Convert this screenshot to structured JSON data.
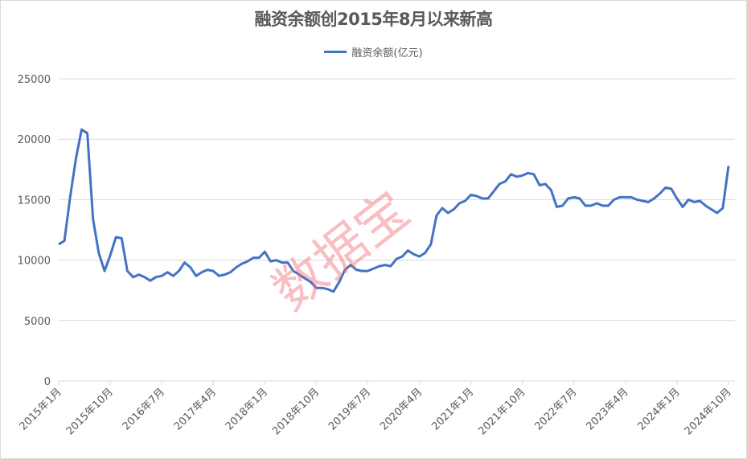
{
  "title": "融资余额创2015年8月以来新高",
  "legend": {
    "label": "融资余额(亿元)",
    "color": "#4472c4"
  },
  "watermark": "数据宝",
  "y_axis": {
    "ticks": [
      "0",
      "5000",
      "10000",
      "15000",
      "20000",
      "25000"
    ]
  },
  "x_axis": {
    "ticks": [
      "2015年1月",
      "2015年10月",
      "2016年7月",
      "2017年4月",
      "2018年1月",
      "2018年10月",
      "2019年7月",
      "2020年4月",
      "2021年1月",
      "2021年10月",
      "2022年7月",
      "2023年4月",
      "2024年1月",
      "2024年10月"
    ]
  },
  "chart_data": {
    "type": "line",
    "title": "融资余额创2015年8月以来新高",
    "xlabel": "",
    "ylabel": "",
    "ylim": [
      0,
      25000
    ],
    "grid": true,
    "legend_position": "top",
    "x_start": "2015-01",
    "x_end": "2024-10",
    "x_frequency": "monthly",
    "x_tick_labels": [
      "2015年1月",
      "2015年10月",
      "2016年7月",
      "2017年4月",
      "2018年1月",
      "2018年10月",
      "2019年7月",
      "2020年4月",
      "2021年1月",
      "2021年10月",
      "2022年7月",
      "2023年4月",
      "2024年1月",
      "2024年10月"
    ],
    "series": [
      {
        "name": "融资余额(亿元)",
        "color": "#4472c4",
        "values": [
          11300,
          11600,
          15200,
          18400,
          20800,
          20500,
          13400,
          10600,
          9100,
          10400,
          11900,
          11800,
          9100,
          8600,
          8800,
          8600,
          8300,
          8600,
          8700,
          9000,
          8700,
          9100,
          9800,
          9400,
          8700,
          9000,
          9200,
          9100,
          8700,
          8800,
          9000,
          9400,
          9700,
          9900,
          10200,
          10200,
          10700,
          9900,
          10000,
          9800,
          9800,
          9100,
          8800,
          8500,
          8200,
          7700,
          7700,
          7600,
          7400,
          8200,
          9200,
          9600,
          9200,
          9100,
          9100,
          9300,
          9500,
          9600,
          9500,
          10100,
          10300,
          10800,
          10500,
          10300,
          10600,
          11300,
          13700,
          14300,
          13900,
          14200,
          14700,
          14900,
          15400,
          15300,
          15100,
          15100,
          15700,
          16300,
          16500,
          17100,
          16900,
          17000,
          17200,
          17100,
          16200,
          16300,
          15800,
          14400,
          14500,
          15100,
          15200,
          15100,
          14500,
          14500,
          14700,
          14500,
          14500,
          15000,
          15200,
          15200,
          15200,
          15000,
          14900,
          14800,
          15100,
          15500,
          16000,
          15900,
          15100,
          14400,
          15000,
          14800,
          14900,
          14500,
          14200,
          13900,
          14300,
          17800
        ]
      }
    ]
  }
}
